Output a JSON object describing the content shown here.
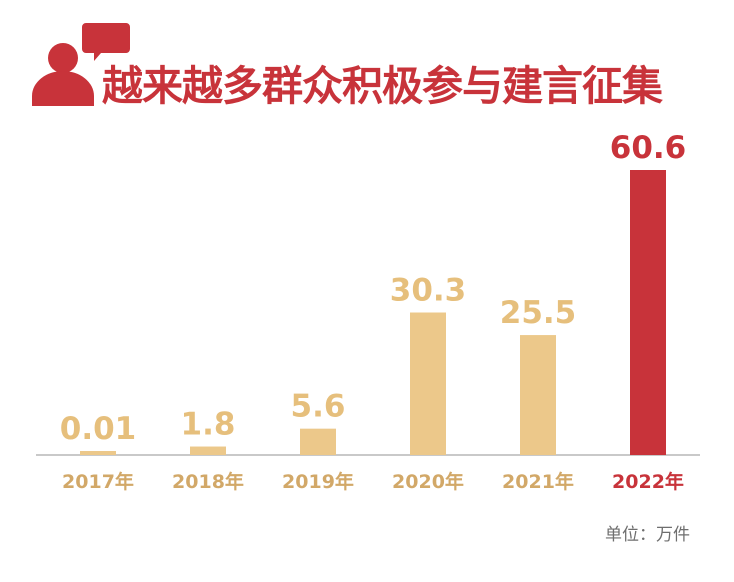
{
  "chart_data": {
    "type": "bar",
    "title": "越来越多群众积极参与建言征集",
    "categories": [
      "2017年",
      "2018年",
      "2019年",
      "2020年",
      "2021年",
      "2022年"
    ],
    "values": [
      0.01,
      1.8,
      5.6,
      30.3,
      25.5,
      60.6
    ],
    "value_labels": [
      "0.01",
      "1.8",
      "5.6",
      "30.3",
      "25.5",
      "60.6"
    ],
    "unit_label": "单位：万件",
    "highlight_index": 5,
    "ylim": [
      0,
      60.6
    ],
    "grid": false,
    "colors": {
      "bar": "#ecc88a",
      "highlight": "#c8333a",
      "label": "#e6bf7c",
      "highlight_label": "#c8333a",
      "axis": "#c9c9c9",
      "tick": "#d2a868"
    },
    "icon": "person-speech-bubble-icon"
  }
}
